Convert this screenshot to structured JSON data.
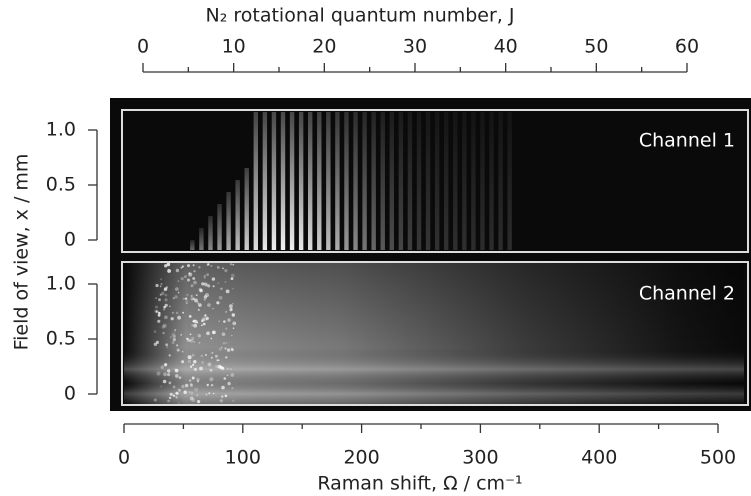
{
  "chart_data": {
    "type": "image",
    "x_label": "Raman shift, Ω / cm⁻¹",
    "xlim": [
      0,
      500
    ],
    "xticks": [
      0,
      100,
      200,
      300,
      400,
      500
    ],
    "x_minor_ticks": [
      50,
      150,
      250,
      350,
      450
    ],
    "x2_label": "N₂ rotational quantum number, J",
    "x2lim": [
      0,
      60
    ],
    "x2ticks": [
      0,
      10,
      20,
      30,
      40,
      50,
      60
    ],
    "x2_minor_ticks": [
      5,
      15,
      25,
      35,
      45,
      55
    ],
    "y_label": "Field of view, x / mm",
    "panels": [
      {
        "label": "Channel 1",
        "ylim": [
          -0.1,
          1.2
        ],
        "yticks": [
          0,
          0.5,
          {
            "value": 1,
            "label": "1.0"
          }
        ]
      },
      {
        "label": "Channel 2",
        "ylim": [
          -0.1,
          1.2
        ],
        "yticks": [
          0,
          0.5,
          {
            "value": 1,
            "label": "1.0"
          }
        ]
      }
    ]
  }
}
